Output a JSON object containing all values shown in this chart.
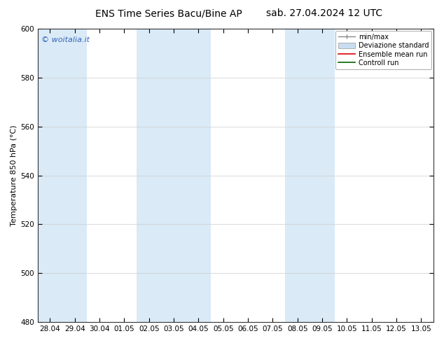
{
  "title_left": "ENS Time Series Bacu/Bine AP",
  "title_right": "sab. 27.04.2024 12 UTC",
  "ylabel": "Temperature 850 hPa (°C)",
  "ylim": [
    480,
    600
  ],
  "yticks": [
    480,
    500,
    520,
    540,
    560,
    580,
    600
  ],
  "x_labels": [
    "28.04",
    "29.04",
    "30.04",
    "01.05",
    "02.05",
    "03.05",
    "04.05",
    "05.05",
    "06.05",
    "07.05",
    "08.05",
    "09.05",
    "10.05",
    "11.05",
    "12.05",
    "13.05"
  ],
  "bg_color": "#ffffff",
  "shaded_band_color": "#daeaf7",
  "shaded_columns": [
    0,
    1,
    4,
    5,
    6,
    10,
    11
  ],
  "watermark_text": "© woitalia.it",
  "watermark_color": "#3366bb",
  "legend_items": [
    {
      "label": "min/max",
      "color": "#aaaaaa",
      "style": "errorbar"
    },
    {
      "label": "Deviazione standard",
      "color": "#ccddee",
      "style": "box"
    },
    {
      "label": "Ensemble mean run",
      "color": "#ff0000",
      "style": "line"
    },
    {
      "label": "Controll run",
      "color": "#006600",
      "style": "line"
    }
  ],
  "grid_color": "#cccccc",
  "tick_label_fontsize": 7.5,
  "title_fontsize": 10,
  "ylabel_fontsize": 8,
  "watermark_fontsize": 8,
  "legend_fontsize": 7
}
